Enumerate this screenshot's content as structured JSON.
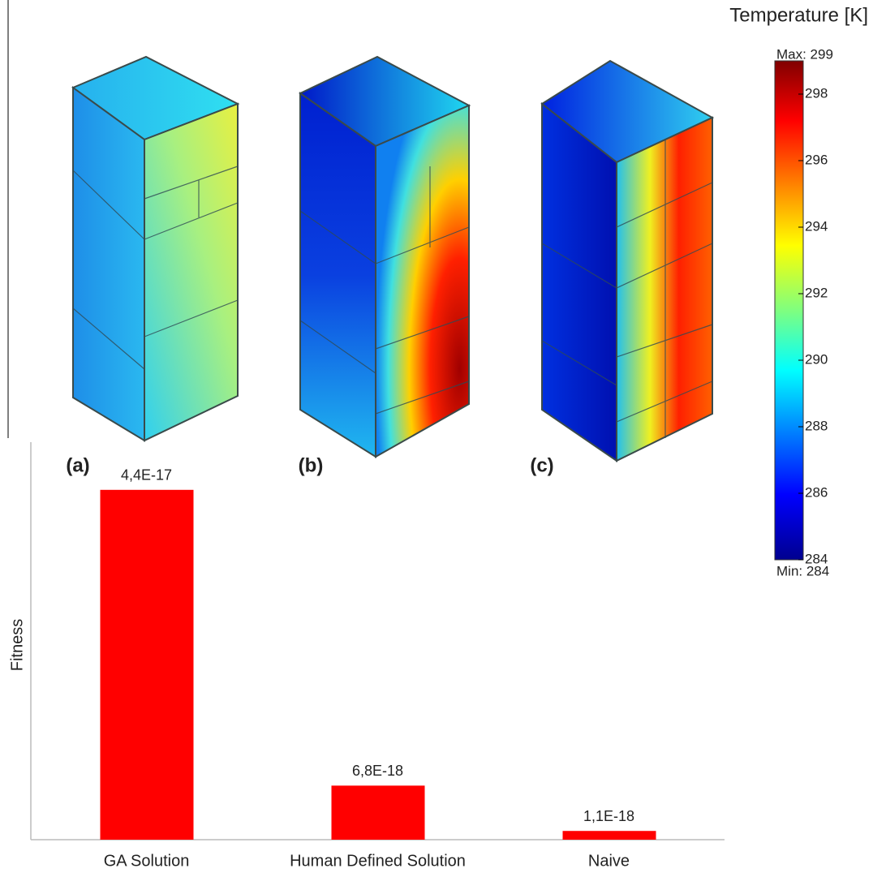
{
  "panels": [
    "(a)",
    "(b)",
    "(c)"
  ],
  "chart_data": [
    {
      "type": "colorbar",
      "title": "Temperature [K]",
      "max_label": "Max: 299",
      "min_label": "Min: 284",
      "ylim": [
        284,
        299
      ],
      "yticks": [
        284,
        286,
        288,
        290,
        292,
        294,
        296,
        298
      ]
    },
    {
      "type": "bar",
      "y_label": "Fitness",
      "categories": [
        "GA Solution",
        "Human Defined Solution",
        "Naive"
      ],
      "values": [
        4.4e-17,
        6.8e-18,
        1.1e-18
      ],
      "value_labels": [
        "4,4E-17",
        "6,8E-18",
        "1,1E-18"
      ],
      "color": "#ff0000",
      "ylim": [
        0,
        5e-17
      ]
    }
  ]
}
